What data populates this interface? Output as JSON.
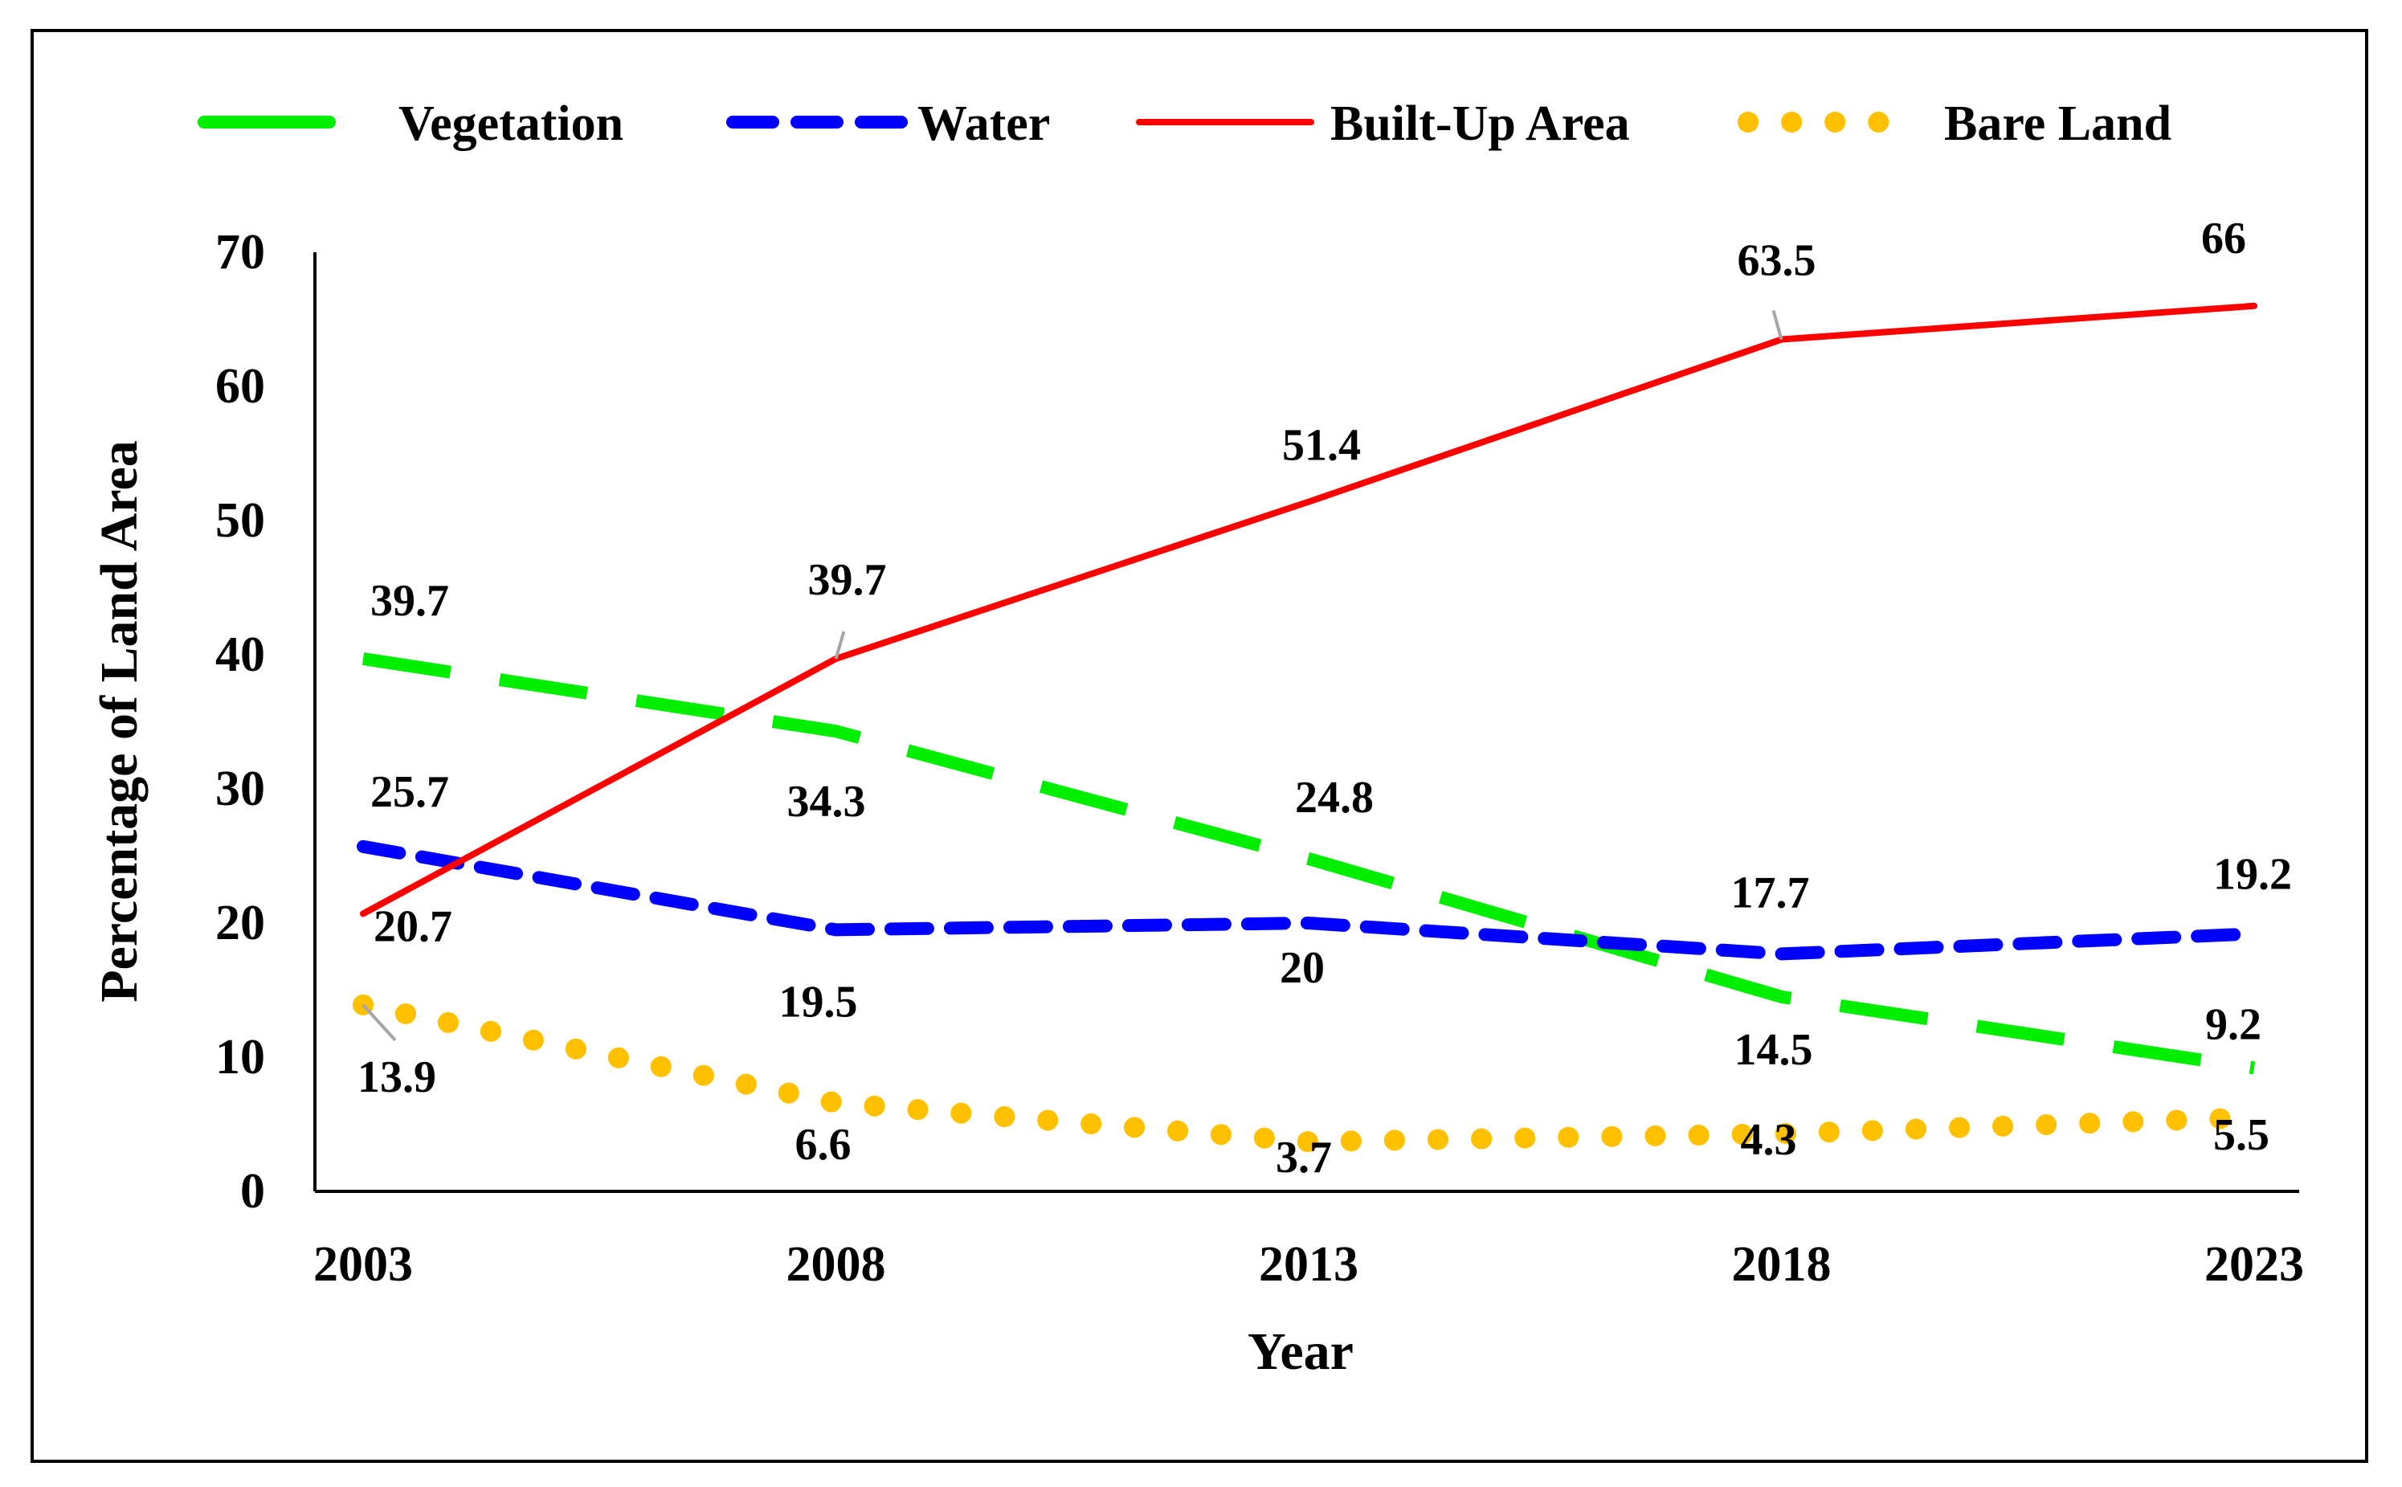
{
  "chart_data": {
    "type": "line",
    "title": "",
    "xlabel": "Year",
    "ylabel": "Percentage of Land Area",
    "x": [
      "2003",
      "2008",
      "2013",
      "2018",
      "2023"
    ],
    "ylim": [
      0,
      70
    ],
    "yticks": [
      0,
      10,
      20,
      30,
      40,
      50,
      60,
      70
    ],
    "grid": false,
    "legend_position": "top",
    "series": [
      {
        "name": "Vegetation",
        "values": [
          39.7,
          34.3,
          24.8,
          14.5,
          9.2
        ],
        "color": "#00ee00",
        "dash": "long-dash"
      },
      {
        "name": "Water",
        "values": [
          25.7,
          19.5,
          20,
          17.7,
          19.2
        ],
        "color": "#0000ff",
        "dash": "dash"
      },
      {
        "name": "Built-Up Area",
        "values": [
          20.7,
          39.7,
          51.4,
          63.5,
          66
        ],
        "color": "#ff0000",
        "dash": "solid"
      },
      {
        "name": "Bare Land",
        "values": [
          13.9,
          6.6,
          3.7,
          4.3,
          5.5
        ],
        "color": "#ffc000",
        "dash": "dot"
      }
    ]
  }
}
